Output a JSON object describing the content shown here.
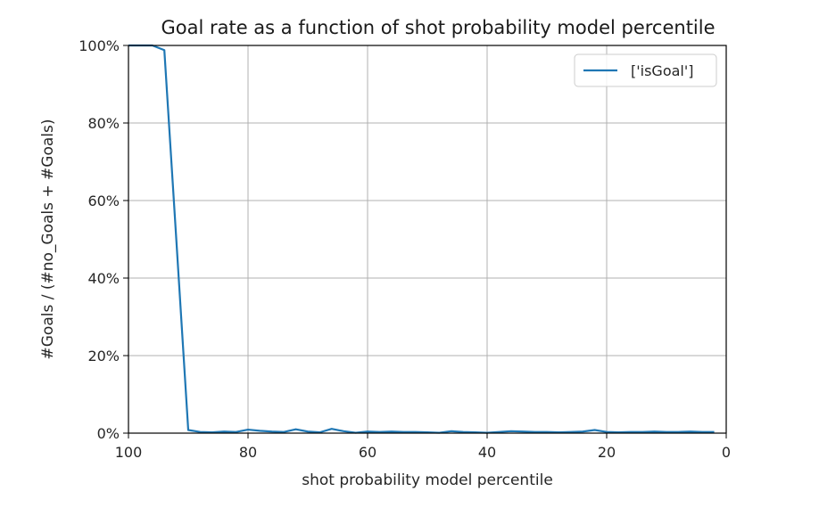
{
  "chart_data": {
    "type": "line",
    "title": "Goal rate as a function of shot probability model percentile",
    "xlabel": "shot probability model percentile",
    "ylabel": "#Goals / (#no_Goals + #Goals)",
    "xlim": [
      100,
      0
    ],
    "ylim": [
      0,
      100
    ],
    "x_ticks": [
      100,
      80,
      60,
      40,
      20,
      0
    ],
    "y_ticks": [
      0,
      20,
      40,
      60,
      80,
      100
    ],
    "y_tick_labels": [
      "0%",
      "20%",
      "40%",
      "60%",
      "80%",
      "100%"
    ],
    "grid": true,
    "legend_position": "top-right",
    "series": [
      {
        "name": "['isGoal']",
        "color": "#1f77b4",
        "x": [
          100,
          98,
          96,
          94,
          92,
          90,
          88,
          86,
          84,
          82,
          80,
          78,
          76,
          74,
          72,
          70,
          68,
          66,
          64,
          62,
          60,
          58,
          56,
          54,
          52,
          50,
          48,
          46,
          44,
          42,
          40,
          38,
          36,
          34,
          32,
          30,
          28,
          26,
          24,
          22,
          20,
          18,
          16,
          14,
          12,
          10,
          8,
          6,
          4,
          2
        ],
        "values": [
          100,
          100,
          100,
          98.8,
          50,
          0.8,
          0.3,
          0.2,
          0.4,
          0.3,
          0.9,
          0.6,
          0.4,
          0.3,
          1.0,
          0.4,
          0.2,
          1.1,
          0.5,
          0.1,
          0.4,
          0.3,
          0.4,
          0.3,
          0.3,
          0.2,
          0.1,
          0.5,
          0.3,
          0.2,
          0.1,
          0.3,
          0.5,
          0.4,
          0.3,
          0.3,
          0.2,
          0.3,
          0.4,
          0.8,
          0.3,
          0.2,
          0.3,
          0.3,
          0.4,
          0.3,
          0.3,
          0.4,
          0.3,
          0.3
        ]
      }
    ]
  }
}
